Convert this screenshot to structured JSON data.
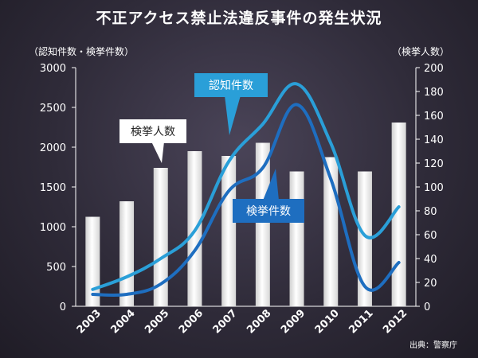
{
  "chart_data": {
    "type": "bar+line",
    "title": "不正アクセス禁止法違反事件の発生状況",
    "ylabel_left": "（認知件数・検挙件数）",
    "ylabel_right": "（検挙人数）",
    "source": "出典：警察庁",
    "categories": [
      "2003",
      "2004",
      "2005",
      "2006",
      "2007",
      "2008",
      "2009",
      "2010",
      "2011",
      "2012"
    ],
    "y_left_lim": [
      0,
      3000
    ],
    "y_left_ticks": [
      "0",
      "500",
      "1000",
      "1500",
      "2000",
      "2500",
      "3000"
    ],
    "y_right_lim": [
      0,
      200
    ],
    "y_right_ticks": [
      "0",
      "20",
      "40",
      "60",
      "80",
      "100",
      "120",
      "140",
      "160",
      "180",
      "200"
    ],
    "series": [
      {
        "name": "検挙人数",
        "type": "bar",
        "axis": "right",
        "color": "#f2f2f2",
        "values": [
          75,
          88,
          116,
          130,
          126,
          137,
          113,
          125,
          113,
          154
        ]
      },
      {
        "name": "認知件数",
        "type": "line",
        "axis": "left",
        "color": "#2a9fd8",
        "values": [
          212,
          370,
          600,
          950,
          1820,
          2290,
          2795,
          2050,
          890,
          1250
        ]
      },
      {
        "name": "検挙件数",
        "type": "line",
        "axis": "left",
        "color": "#1e6ec0",
        "values": [
          150,
          150,
          280,
          700,
          1450,
          1740,
          2535,
          1600,
          250,
          550
        ]
      }
    ],
    "grid": false,
    "legend": "callouts"
  }
}
